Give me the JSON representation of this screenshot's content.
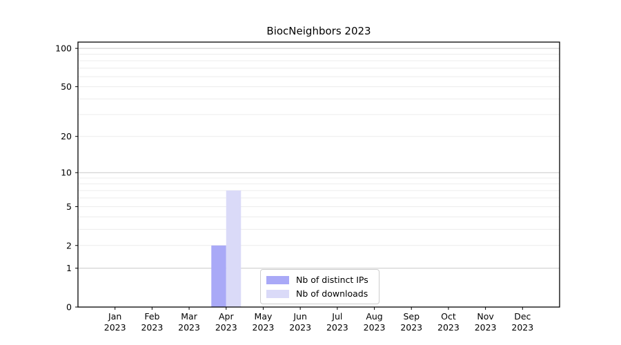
{
  "title": "BiocNeighbors 2023",
  "chart_data": {
    "type": "bar",
    "title": "BiocNeighbors 2023",
    "categories": [
      "Jan 2023",
      "Feb 2023",
      "Mar 2023",
      "Apr 2023",
      "May 2023",
      "Jun 2023",
      "Jul 2023",
      "Aug 2023",
      "Sep 2023",
      "Oct 2023",
      "Nov 2023",
      "Dec 2023"
    ],
    "series": [
      {
        "name": "Nb of distinct IPs",
        "color": "#a9a9f7",
        "values": [
          0,
          0,
          0,
          2,
          0,
          0,
          0,
          0,
          0,
          0,
          0,
          0
        ]
      },
      {
        "name": "Nb of downloads",
        "color": "#dadaf8",
        "values": [
          0,
          0,
          0,
          7,
          0,
          0,
          0,
          0,
          0,
          0,
          0,
          0
        ]
      }
    ],
    "yscale": "log1p",
    "yticks": [
      0,
      1,
      2,
      5,
      10,
      20,
      50,
      100
    ],
    "ylim": [
      0,
      112
    ],
    "grid": "horizontal",
    "legend_position": "lower center"
  },
  "colors": {
    "axis": "#000000",
    "grid_major": "#c8c8c8",
    "grid_minor": "#ececec",
    "background": "#ffffff"
  }
}
